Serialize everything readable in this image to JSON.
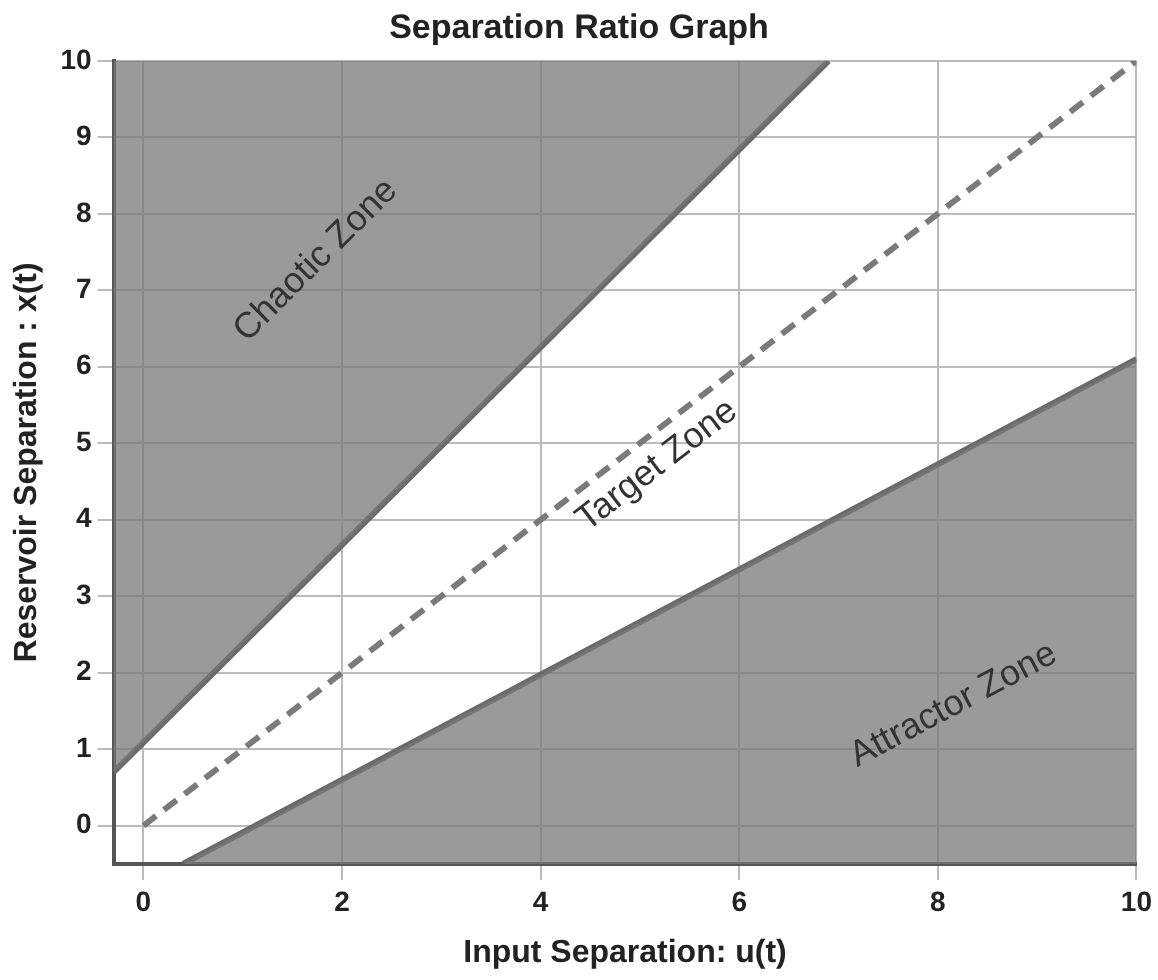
{
  "chart_data": {
    "type": "line",
    "title": "Separation Ratio Graph",
    "xlabel": "Input Separation: u(t)",
    "ylabel": "Reservoir Separation : x(t)",
    "xlim": [
      -0.3,
      10
    ],
    "ylim": [
      -0.5,
      10
    ],
    "xticks": [
      0,
      2,
      4,
      6,
      8,
      10
    ],
    "yticks": [
      0,
      1,
      2,
      3,
      4,
      5,
      6,
      7,
      8,
      9,
      10
    ],
    "grid": true,
    "series": [
      {
        "x": [
          -0.3,
          6.9
        ],
        "values": [
          0.7,
          10
        ],
        "lower": [
          0.7,
          10
        ],
        "upper": [
          10,
          10
        ],
        "color": "#6a6a6a",
        "line_style": "solid"
      },
      {
        "x": [
          0,
          10
        ],
        "values": [
          0,
          10
        ],
        "color": "#7a7a7a",
        "line_style": "dashed"
      },
      {
        "x": [
          0.4,
          10
        ],
        "values": [
          -0.5,
          6.1
        ],
        "lower": [
          -0.5,
          -0.5
        ],
        "upper": [
          -0.5,
          6.1
        ],
        "color": "#6a6a6a",
        "line_style": "solid"
      }
    ],
    "annotations": [
      "Chaotic Zone",
      "Target Zone",
      "Attractor Zone"
    ]
  }
}
